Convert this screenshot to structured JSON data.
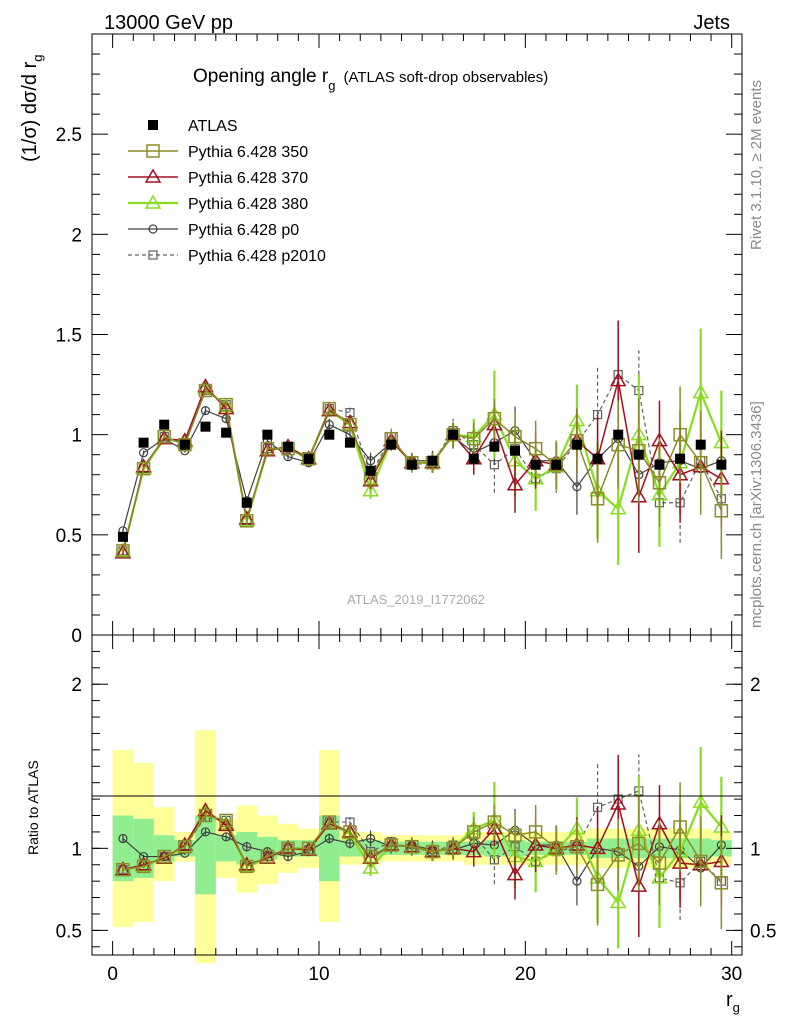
{
  "header": {
    "left": "13000 GeV pp",
    "right": "Jets",
    "side_top": "Rivet 3.1.10, ≥ 2M events",
    "side_bottom": "mcplots.cern.ch [arXiv:1306.3436]",
    "watermark": "ATLAS_2019_I1772062"
  },
  "chart_data": [
    {
      "type": "line",
      "panel": "main",
      "title": "Opening angle r",
      "title_sub": "g",
      "title_note": "(ATLAS soft-drop observables)",
      "ylabel": "(1/σ) dσ/d r",
      "ylabel_sub": "g",
      "xlim": [
        -1,
        30.5
      ],
      "ylim": [
        0,
        3.0
      ],
      "x_ticks": [
        "0",
        "10",
        "20",
        "30"
      ],
      "y_ticks": [
        "0",
        "0.5",
        "1",
        "1.5",
        "2",
        "2.5"
      ],
      "legend_position": "top-left",
      "x": [
        0.5,
        1.5,
        2.5,
        3.5,
        4.5,
        5.5,
        6.5,
        7.5,
        8.5,
        9.5,
        10.5,
        11.5,
        12.5,
        13.5,
        14.5,
        15.5,
        16.5,
        17.5,
        18.5,
        19.5,
        20.5,
        21.5,
        22.5,
        23.5,
        24.5,
        25.5,
        26.5,
        27.5,
        28.5,
        29.5
      ],
      "series": [
        {
          "name": "ATLAS",
          "color": "#000000",
          "marker": "filled-square",
          "line": "none",
          "values": [
            0.49,
            0.96,
            1.05,
            0.95,
            1.04,
            1.01,
            0.66,
            1.0,
            0.94,
            0.88,
            1.0,
            0.96,
            0.82,
            0.95,
            0.85,
            0.87,
            1.0,
            0.88,
            0.94,
            0.92,
            0.85,
            0.85,
            0.95,
            0.88,
            1.0,
            0.9,
            0.85,
            0.88,
            0.95,
            0.85
          ]
        },
        {
          "name": "Pythia 6.428 350",
          "color": "#8c8c2a",
          "marker": "open-square",
          "line": "solid",
          "values": [
            0.42,
            0.83,
            0.99,
            0.95,
            1.22,
            1.15,
            0.57,
            0.93,
            0.93,
            0.88,
            1.13,
            1.05,
            0.78,
            0.98,
            0.86,
            0.86,
            1.0,
            0.98,
            1.08,
            0.99,
            0.93,
            0.85,
            0.97,
            0.68,
            0.95,
            0.92,
            0.76,
            1.0,
            0.86,
            0.62
          ]
        },
        {
          "name": "Pythia 6.428 370",
          "color": "#a01020",
          "marker": "open-triangle",
          "line": "solid",
          "values": [
            0.41,
            0.84,
            0.98,
            0.97,
            1.24,
            1.13,
            0.58,
            0.92,
            0.94,
            0.88,
            1.12,
            1.06,
            0.77,
            0.97,
            0.86,
            0.86,
            1.0,
            0.88,
            1.05,
            0.75,
            0.87,
            0.85,
            0.97,
            0.88,
            1.27,
            0.69,
            0.97,
            0.8,
            0.84,
            0.78
          ]
        },
        {
          "name": "Pythia 6.428 380",
          "color": "#88dd22",
          "marker": "open-triangle",
          "line": "solid-thick",
          "values": [
            0.42,
            0.83,
            0.98,
            0.96,
            1.23,
            1.14,
            0.57,
            0.92,
            0.94,
            0.88,
            1.12,
            1.05,
            0.72,
            0.97,
            0.86,
            0.86,
            1.0,
            0.99,
            1.1,
            0.87,
            0.78,
            0.84,
            1.07,
            0.72,
            0.63,
            1.0,
            0.7,
            0.86,
            1.21,
            0.96
          ]
        },
        {
          "name": "Pythia 6.428 p0",
          "color": "#404040",
          "marker": "open-circle",
          "line": "solid-thin",
          "values": [
            0.52,
            0.91,
            0.98,
            0.92,
            1.12,
            1.08,
            0.67,
            0.97,
            0.89,
            0.86,
            1.05,
            1.0,
            0.87,
            0.96,
            0.87,
            0.87,
            0.99,
            0.91,
            0.96,
            1.02,
            0.87,
            0.87,
            0.74,
            0.88,
            0.98,
            0.8,
            0.86,
            0.87,
            0.83,
            0.87
          ]
        },
        {
          "name": "Pythia 6.428 p2010",
          "color": "#606060",
          "marker": "open-square-small",
          "line": "dashed",
          "values": [
            0.42,
            0.83,
            0.99,
            0.95,
            1.22,
            1.15,
            0.57,
            0.93,
            0.94,
            0.87,
            1.13,
            1.11,
            0.8,
            0.99,
            0.85,
            0.86,
            1.02,
            0.95,
            0.85,
            0.93,
            0.78,
            0.83,
            0.96,
            1.1,
            1.3,
            1.22,
            0.66,
            0.66,
            0.87,
            0.68
          ]
        }
      ],
      "errors": {
        "Pythia 6.428 350": [
          0.01,
          0.01,
          0.01,
          0.01,
          0.02,
          0.02,
          0.02,
          0.02,
          0.02,
          0.02,
          0.03,
          0.03,
          0.04,
          0.04,
          0.04,
          0.05,
          0.06,
          0.08,
          0.1,
          0.12,
          0.14,
          0.12,
          0.16,
          0.22,
          0.22,
          0.26,
          0.22,
          0.24,
          0.26,
          0.24
        ],
        "Pythia 6.428 370": [
          0.01,
          0.01,
          0.01,
          0.01,
          0.02,
          0.02,
          0.02,
          0.02,
          0.02,
          0.02,
          0.03,
          0.03,
          0.04,
          0.04,
          0.04,
          0.05,
          0.06,
          0.08,
          0.1,
          0.14,
          0.14,
          0.12,
          0.16,
          0.22,
          0.3,
          0.28,
          0.2,
          0.24,
          0.22,
          0.24
        ],
        "Pythia 6.428 380": [
          0.01,
          0.01,
          0.01,
          0.01,
          0.02,
          0.02,
          0.02,
          0.02,
          0.02,
          0.02,
          0.03,
          0.03,
          0.04,
          0.04,
          0.04,
          0.05,
          0.06,
          0.09,
          0.22,
          0.18,
          0.16,
          0.12,
          0.18,
          0.24,
          0.28,
          0.3,
          0.26,
          0.26,
          0.32,
          0.26
        ],
        "Pythia 6.428 p0": [
          0.01,
          0.01,
          0.01,
          0.01,
          0.02,
          0.02,
          0.02,
          0.02,
          0.02,
          0.02,
          0.03,
          0.03,
          0.04,
          0.04,
          0.04,
          0.05,
          0.06,
          0.08,
          0.1,
          0.12,
          0.12,
          0.1,
          0.14,
          0.2,
          0.22,
          0.2,
          0.2,
          0.22,
          0.22,
          0.22
        ],
        "Pythia 6.428 p2010": [
          0.01,
          0.01,
          0.01,
          0.01,
          0.02,
          0.02,
          0.02,
          0.02,
          0.02,
          0.02,
          0.03,
          0.03,
          0.04,
          0.04,
          0.04,
          0.05,
          0.06,
          0.08,
          0.14,
          0.12,
          0.14,
          0.12,
          0.14,
          0.24,
          0.23,
          0.2,
          0.2,
          0.2,
          0.22,
          0.22
        ]
      }
    },
    {
      "type": "line",
      "panel": "ratio",
      "ylabel": "Ratio to ATLAS",
      "xlabel": "r",
      "xlabel_sub": "g",
      "xlim": [
        -1,
        30.5
      ],
      "ylim": [
        0.35,
        2.3
      ],
      "x_ticks": [
        "0",
        "10",
        "20",
        "30"
      ],
      "y_ticks": [
        "0.5",
        "1",
        "2"
      ],
      "band_stat": [
        [
          0.8,
          1.2
        ],
        [
          0.82,
          1.18
        ],
        [
          0.92,
          1.08
        ],
        [
          0.95,
          1.05
        ],
        [
          0.72,
          1.2
        ],
        [
          0.92,
          1.08
        ],
        [
          0.9,
          1.1
        ],
        [
          0.93,
          1.07
        ],
        [
          0.95,
          1.05
        ],
        [
          0.95,
          1.05
        ],
        [
          0.8,
          1.2
        ],
        [
          0.95,
          1.05
        ],
        [
          0.95,
          1.05
        ],
        [
          0.96,
          1.04
        ],
        [
          0.96,
          1.04
        ],
        [
          0.96,
          1.04
        ],
        [
          0.96,
          1.04
        ],
        [
          0.96,
          1.04
        ],
        [
          0.95,
          1.05
        ],
        [
          0.95,
          1.05
        ],
        [
          0.96,
          1.04
        ],
        [
          0.96,
          1.04
        ],
        [
          0.96,
          1.04
        ],
        [
          0.94,
          1.06
        ],
        [
          0.94,
          1.06
        ],
        [
          0.94,
          1.06
        ],
        [
          0.94,
          1.06
        ],
        [
          0.94,
          1.06
        ],
        [
          0.94,
          1.06
        ],
        [
          0.95,
          1.05
        ]
      ],
      "band_total": [
        [
          0.52,
          1.6
        ],
        [
          0.55,
          1.52
        ],
        [
          0.8,
          1.25
        ],
        [
          0.92,
          1.1
        ],
        [
          0.3,
          1.72
        ],
        [
          0.82,
          1.18
        ],
        [
          0.73,
          1.26
        ],
        [
          0.78,
          1.2
        ],
        [
          0.85,
          1.15
        ],
        [
          0.88,
          1.12
        ],
        [
          0.55,
          1.6
        ],
        [
          0.9,
          1.1
        ],
        [
          0.9,
          1.1
        ],
        [
          0.92,
          1.08
        ],
        [
          0.92,
          1.08
        ],
        [
          0.92,
          1.08
        ],
        [
          0.92,
          1.08
        ],
        [
          0.9,
          1.1
        ],
        [
          0.9,
          1.1
        ],
        [
          0.9,
          1.1
        ],
        [
          0.9,
          1.1
        ],
        [
          0.9,
          1.1
        ],
        [
          0.9,
          1.1
        ],
        [
          0.88,
          1.12
        ],
        [
          0.88,
          1.12
        ],
        [
          0.88,
          1.12
        ],
        [
          0.88,
          1.12
        ],
        [
          0.88,
          1.12
        ],
        [
          0.88,
          1.12
        ],
        [
          0.9,
          1.1
        ]
      ],
      "series": [
        {
          "name": "Pythia 6.428 350",
          "values": [
            0.87,
            0.89,
            0.95,
            1.01,
            1.2,
            1.17,
            0.89,
            0.95,
            1.0,
            1.0,
            1.16,
            1.1,
            0.95,
            1.02,
            1.01,
            0.98,
            1.0,
            1.1,
            1.16,
            1.08,
            1.1,
            1.0,
            1.01,
            0.78,
            0.96,
            1.03,
            0.91,
            1.13,
            0.92,
            0.79
          ]
        },
        {
          "name": "Pythia 6.428 370",
          "values": [
            0.87,
            0.9,
            0.94,
            1.02,
            1.23,
            1.14,
            0.9,
            0.94,
            1.0,
            0.99,
            1.15,
            1.1,
            0.94,
            1.02,
            1.01,
            0.98,
            1.0,
            0.98,
            1.12,
            0.84,
            1.02,
            1.0,
            1.02,
            1.0,
            1.27,
            0.77,
            1.15,
            0.91,
            0.9,
            0.92
          ]
        },
        {
          "name": "Pythia 6.428 380",
          "values": [
            0.87,
            0.89,
            0.94,
            1.01,
            1.22,
            1.15,
            0.89,
            0.94,
            1.0,
            0.99,
            1.15,
            1.09,
            0.88,
            1.02,
            1.01,
            0.98,
            1.0,
            1.12,
            1.17,
            0.95,
            0.92,
            0.99,
            1.12,
            0.82,
            0.67,
            1.11,
            0.82,
            0.98,
            1.28,
            1.13
          ]
        },
        {
          "name": "Pythia 6.428 p0",
          "values": [
            1.06,
            0.95,
            0.95,
            0.97,
            1.1,
            1.07,
            1.01,
            0.98,
            0.95,
            0.98,
            1.06,
            1.03,
            1.06,
            1.01,
            1.02,
            0.99,
            0.99,
            1.03,
            1.02,
            1.11,
            1.02,
            1.02,
            0.8,
            1.0,
            0.98,
            0.89,
            1.01,
            0.99,
            0.88,
            1.02
          ]
        },
        {
          "name": "Pythia 6.428 p2010",
          "values": [
            0.87,
            0.89,
            0.95,
            1.01,
            1.19,
            1.17,
            0.89,
            0.95,
            1.0,
            0.99,
            1.16,
            1.16,
            0.98,
            1.04,
            1.0,
            0.98,
            1.02,
            1.08,
            0.93,
            1.01,
            0.92,
            0.98,
            1.01,
            1.25,
            1.3,
            1.35,
            0.82,
            0.79,
            0.92,
            0.8
          ]
        }
      ]
    }
  ]
}
